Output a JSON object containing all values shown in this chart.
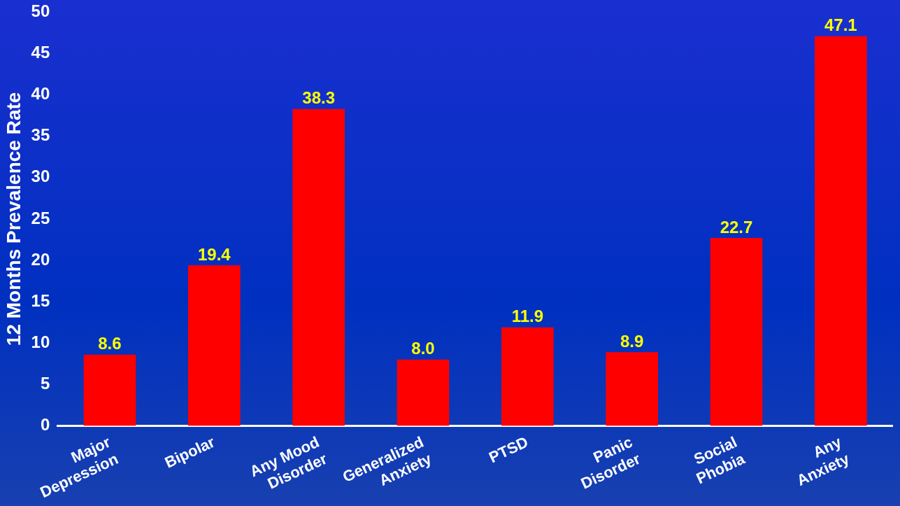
{
  "chart_data": {
    "type": "bar",
    "ylabel": "12 Months Prevalence Rate",
    "categories": [
      "Major\nDepression",
      "Bipolar",
      "Any Mood\nDisorder",
      "Generalized\nAnxiety",
      "PTSD",
      "Panic\nDisorder",
      "Social\nPhobia",
      "Any\nAnxiety"
    ],
    "values": [
      8.6,
      19.4,
      38.3,
      8.0,
      11.9,
      8.9,
      22.7,
      47.1
    ],
    "value_labels": [
      "8.6",
      "19.4",
      "38.3",
      "8.0",
      "11.9",
      "8.9",
      "22.7",
      "47.1"
    ],
    "color": "#ff0000",
    "ylim": [
      0,
      50
    ],
    "yticks": [
      0,
      5,
      10,
      15,
      20,
      25,
      30,
      35,
      40,
      45,
      50
    ],
    "grid": false,
    "legend": false
  }
}
